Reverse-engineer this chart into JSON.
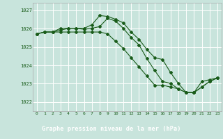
{
  "ylim": [
    1021.5,
    1027.4
  ],
  "xlim": [
    -0.5,
    23.5
  ],
  "yticks": [
    1022,
    1023,
    1024,
    1025,
    1026,
    1027
  ],
  "xticks": [
    0,
    1,
    2,
    3,
    4,
    5,
    6,
    7,
    8,
    9,
    10,
    11,
    12,
    13,
    14,
    15,
    16,
    17,
    18,
    19,
    20,
    21,
    22,
    23
  ],
  "bg_color": "#c8e4dc",
  "grid_color": "#b8d8d0",
  "line_color": "#1a5c1a",
  "xlabel": "Graphe pression niveau de la mer (hPa)",
  "xlabel_bg": "#1a5c1a",
  "xlabel_fg": "#ffffff",
  "series1": [
    1025.72,
    1025.82,
    1025.82,
    1026.02,
    1026.02,
    1026.02,
    1026.02,
    1026.22,
    1026.72,
    1026.67,
    1026.52,
    1026.32,
    1025.82,
    1025.42,
    1024.87,
    1024.42,
    1024.32,
    1023.62,
    1023.02,
    1022.52,
    1022.52,
    1023.12,
    1023.22,
    1023.32
  ],
  "series2": [
    1025.72,
    1025.82,
    1025.82,
    1025.82,
    1025.82,
    1025.82,
    1025.82,
    1025.82,
    1025.82,
    1025.72,
    1025.32,
    1024.92,
    1024.42,
    1023.92,
    1023.42,
    1022.92,
    1022.92,
    1022.82,
    1022.72,
    1022.52,
    1022.52,
    1022.82,
    1023.12,
    1023.32
  ],
  "series3": [
    1025.72,
    1025.82,
    1025.82,
    1025.92,
    1026.02,
    1026.02,
    1025.97,
    1026.02,
    1026.12,
    1026.57,
    1026.42,
    1026.02,
    1025.52,
    1025.12,
    1024.37,
    1023.72,
    1023.12,
    1023.02,
    1022.72,
    1022.52,
    1022.52,
    1022.82,
    1023.12,
    1023.32
  ]
}
